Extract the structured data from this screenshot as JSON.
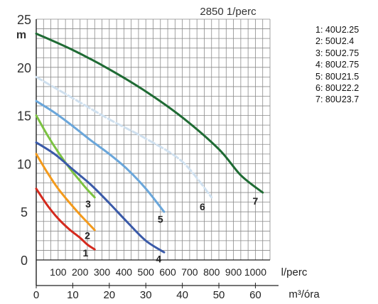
{
  "chart_data": {
    "type": "line",
    "title": "2850 1/perc",
    "y_unit_label": "m",
    "x_unit_label": "m³/óra",
    "x2_unit_label": "l/perc",
    "xlim": [
      0,
      64
    ],
    "ylim": [
      0,
      25
    ],
    "x_ticks": [
      0,
      10,
      20,
      30,
      40,
      50,
      60
    ],
    "y_ticks": [
      0,
      5,
      10,
      15,
      20,
      25
    ],
    "x2_ticks": [
      {
        "label": "100",
        "x": 6
      },
      {
        "label": "200",
        "x": 12
      },
      {
        "label": "300",
        "x": 18
      },
      {
        "label": "400",
        "x": 24
      },
      {
        "label": "500",
        "x": 30
      },
      {
        "label": "600",
        "x": 36
      },
      {
        "label": "700",
        "x": 42
      },
      {
        "label": "800",
        "x": 48
      },
      {
        "label": "900",
        "x": 54
      },
      {
        "label": "1000",
        "x": 60
      }
    ],
    "grid": true,
    "legend_position": "top-right",
    "legend": [
      {
        "number": "1",
        "text": "1: 40U2.25"
      },
      {
        "number": "2",
        "text": "2: 50U2.4"
      },
      {
        "number": "3",
        "text": "3: 50U2.75"
      },
      {
        "number": "4",
        "text": "4: 80U2.75"
      },
      {
        "number": "5",
        "text": "5: 80U21.5"
      },
      {
        "number": "6",
        "text": "6: 80U22.2"
      },
      {
        "number": "7",
        "text": "7: 80U23.7"
      }
    ],
    "series": [
      {
        "number": "1",
        "color": "#d42a1e",
        "dashed": false,
        "points": [
          [
            0,
            7.4
          ],
          [
            3,
            5.7
          ],
          [
            6,
            4.3
          ],
          [
            9,
            3.2
          ],
          [
            12,
            2.3
          ],
          [
            14,
            1.6
          ],
          [
            16,
            1.1
          ]
        ],
        "label_at": [
          13.5,
          0.8
        ]
      },
      {
        "number": "2",
        "color": "#f39a1c",
        "dashed": false,
        "points": [
          [
            0,
            11.0
          ],
          [
            3,
            9.1
          ],
          [
            6,
            7.4
          ],
          [
            9,
            6.0
          ],
          [
            12,
            4.7
          ],
          [
            14,
            3.9
          ],
          [
            16,
            3.1
          ]
        ],
        "label_at": [
          14,
          2.6
        ]
      },
      {
        "number": "3",
        "color": "#7cc242",
        "dashed": false,
        "points": [
          [
            0,
            15.0
          ],
          [
            3,
            13.0
          ],
          [
            6,
            11.2
          ],
          [
            9,
            9.6
          ],
          [
            12,
            8.2
          ],
          [
            14,
            7.3
          ],
          [
            16,
            6.5
          ]
        ],
        "label_at": [
          14.2,
          5.9
        ]
      },
      {
        "number": "4",
        "color": "#3a5aa8",
        "dashed": false,
        "points": [
          [
            0,
            12.2
          ],
          [
            5,
            11.0
          ],
          [
            10,
            9.4
          ],
          [
            15,
            7.8
          ],
          [
            20,
            5.9
          ],
          [
            25,
            3.9
          ],
          [
            30,
            2.0
          ],
          [
            35,
            0.8
          ]
        ],
        "label_at": [
          33.5,
          0.2
        ]
      },
      {
        "number": "5",
        "color": "#6aa6da",
        "dashed": false,
        "points": [
          [
            0,
            16.5
          ],
          [
            5,
            15.3
          ],
          [
            10,
            13.9
          ],
          [
            15,
            12.4
          ],
          [
            20,
            11.0
          ],
          [
            25,
            9.4
          ],
          [
            30,
            7.4
          ],
          [
            35,
            5.0
          ]
        ],
        "label_at": [
          34,
          4.3
        ]
      },
      {
        "number": "6",
        "color": "#cfe0ef",
        "dashed": true,
        "points": [
          [
            0,
            19.0
          ],
          [
            10,
            16.8
          ],
          [
            20,
            14.6
          ],
          [
            30,
            12.6
          ],
          [
            40,
            10.2
          ],
          [
            48,
            6.5
          ]
        ],
        "label_at": [
          45.5,
          5.6
        ]
      },
      {
        "number": "7",
        "color": "#1f6b34",
        "dashed": false,
        "points": [
          [
            0,
            23.5
          ],
          [
            10,
            21.8
          ],
          [
            20,
            19.8
          ],
          [
            30,
            17.5
          ],
          [
            40,
            14.8
          ],
          [
            50,
            11.5
          ],
          [
            56,
            8.8
          ],
          [
            62,
            7.0
          ]
        ],
        "label_at": [
          60,
          6.2
        ]
      }
    ]
  }
}
